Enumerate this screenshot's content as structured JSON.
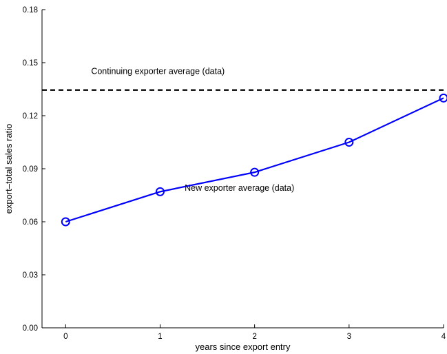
{
  "chart_data": {
    "type": "line",
    "xlabel": "years since export entry",
    "ylabel": "export–total sales ratio",
    "xlim": [
      -0.25,
      4
    ],
    "ylim": [
      0,
      0.18
    ],
    "xticks": [
      0,
      1,
      2,
      3,
      4
    ],
    "xtick_labels": [
      "0",
      "1",
      "2",
      "3",
      "4"
    ],
    "yticks": [
      0,
      0.03,
      0.06,
      0.09,
      0.12,
      0.15,
      0.18
    ],
    "ytick_labels": [
      "0.00",
      "0.03",
      "0.06",
      "0.09",
      "0.12",
      "0.15",
      "0.18"
    ],
    "grid": false,
    "series": [
      {
        "x": [
          0,
          1,
          2,
          3,
          4
        ],
        "values": [
          0.06,
          0.077,
          0.088,
          0.105,
          0.13
        ],
        "color": "#0000ff",
        "line_style": "solid",
        "marker": "circle"
      },
      {
        "x": [
          -0.25,
          4
        ],
        "values": [
          0.1345,
          0.1345
        ],
        "color": "#000000",
        "line_style": "dashed",
        "marker": "none"
      }
    ],
    "annotations": [
      {
        "text": "Continuing exporter average (data)",
        "x": 0.27,
        "y": 0.1435
      },
      {
        "text": "New exporter average (data)",
        "x": 1.26,
        "y": 0.0775
      }
    ]
  }
}
